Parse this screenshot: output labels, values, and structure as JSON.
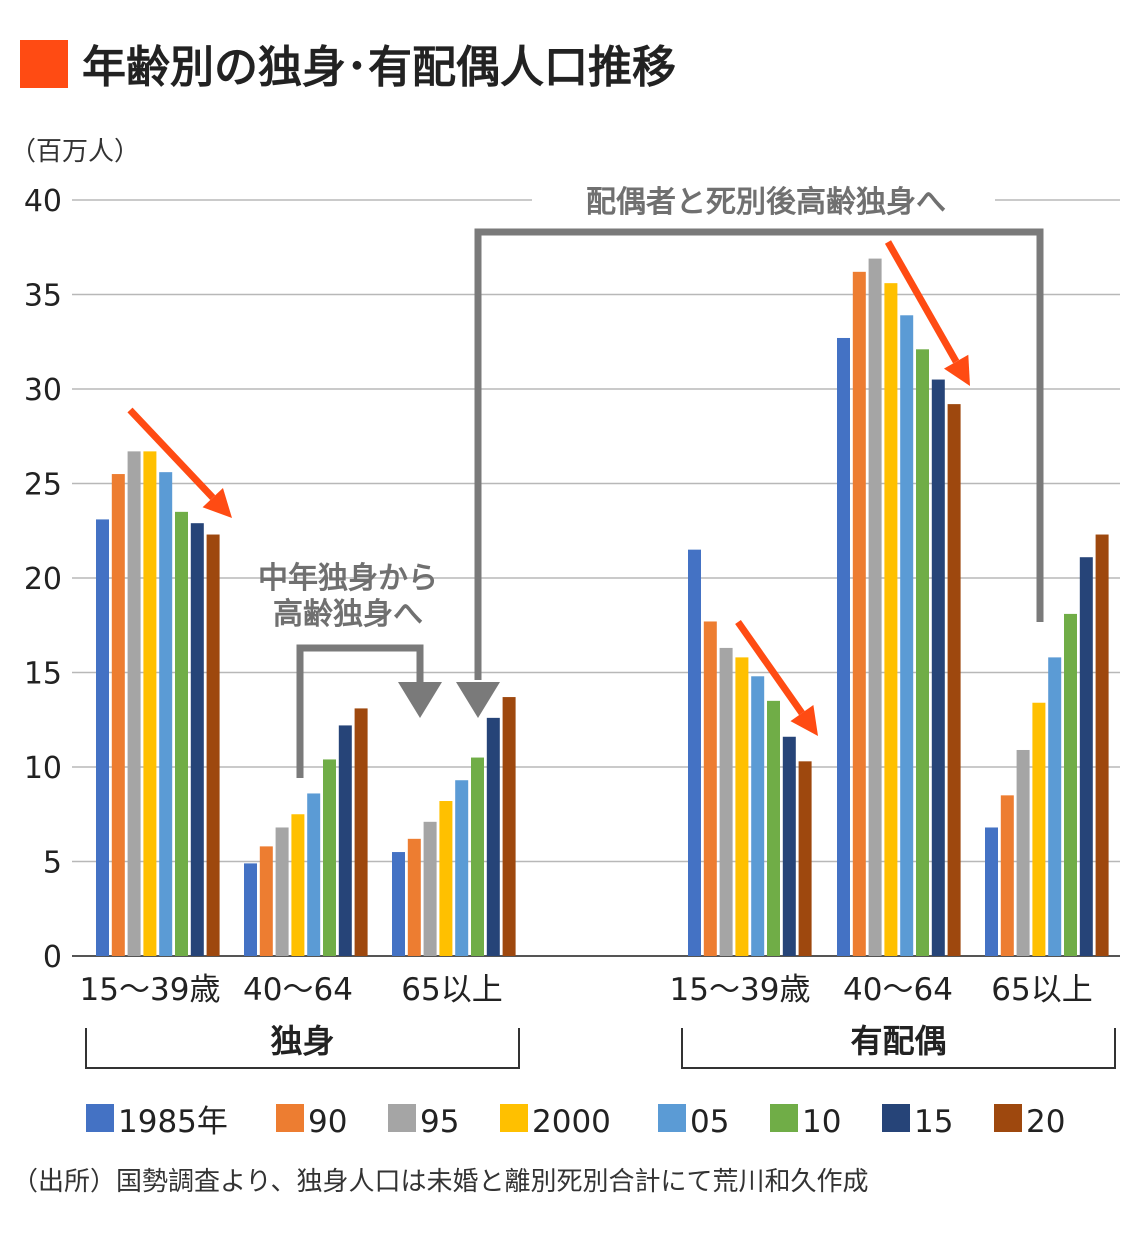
{
  "title": "年齢別の独身･有配偶人口推移",
  "accent_color": "#FF4B13",
  "annotation_gray": "#7A7A7A",
  "source": "（出所）国勢調査より、独身人口は未婚と離別死別合計にて荒川和久作成",
  "annotations": {
    "top_bracket": "配偶者と死別後高齢独身へ",
    "mid_bracket_line1": "中年独身から",
    "mid_bracket_line2": "高齢独身へ"
  },
  "chart_data": {
    "type": "bar",
    "ylabel": "（百万人）",
    "ylim": [
      0,
      40
    ],
    "yticks": [
      0,
      5,
      10,
      15,
      20,
      25,
      30,
      35,
      40
    ],
    "grid": true,
    "legend_position": "bottom",
    "groups": [
      {
        "label": "独身",
        "categories": [
          "15～39歳",
          "40～64",
          "65以上"
        ]
      },
      {
        "label": "有配偶",
        "categories": [
          "15～39歳",
          "40～64",
          "65以上"
        ]
      }
    ],
    "series": [
      {
        "name": "1985年",
        "color": "#4472C4",
        "values": [
          23.1,
          4.9,
          5.5,
          21.5,
          32.7,
          6.8
        ]
      },
      {
        "name": "90",
        "color": "#ED7D31",
        "values": [
          25.5,
          5.8,
          6.2,
          17.7,
          36.2,
          8.5
        ]
      },
      {
        "name": "95",
        "color": "#A5A5A5",
        "values": [
          26.7,
          6.8,
          7.1,
          16.3,
          36.9,
          10.9
        ]
      },
      {
        "name": "2000",
        "color": "#FFC000",
        "values": [
          26.7,
          7.5,
          8.2,
          15.8,
          35.6,
          13.4
        ]
      },
      {
        "name": "05",
        "color": "#5B9BD5",
        "values": [
          25.6,
          8.6,
          9.3,
          14.8,
          33.9,
          15.8
        ]
      },
      {
        "name": "10",
        "color": "#70AD47",
        "values": [
          23.5,
          10.4,
          10.5,
          13.5,
          32.1,
          18.1
        ]
      },
      {
        "name": "15",
        "color": "#264478",
        "values": [
          22.9,
          12.2,
          12.6,
          11.6,
          30.5,
          21.1
        ]
      },
      {
        "name": "20",
        "color": "#9E480E",
        "values": [
          22.3,
          13.1,
          13.7,
          10.3,
          29.2,
          22.3
        ]
      }
    ]
  }
}
